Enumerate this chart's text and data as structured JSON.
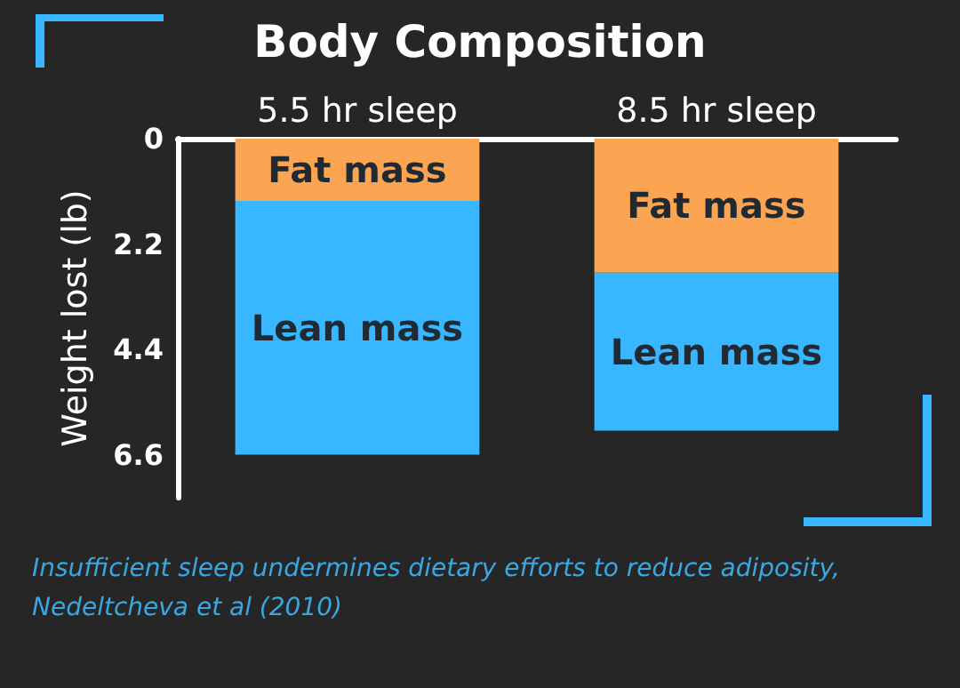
{
  "chart_data": {
    "type": "bar",
    "stacked": true,
    "title": "Body Composition",
    "ylabel": "Weight lost (lb)",
    "categories": [
      "5.5 hr sleep",
      "8.5 hr sleep"
    ],
    "series": [
      {
        "name": "Fat mass",
        "color": "#fba553",
        "values": [
          1.3,
          2.8
        ]
      },
      {
        "name": "Lean mass",
        "color": "#38b6ff",
        "values": [
          5.3,
          3.3
        ]
      }
    ],
    "ylim": [
      7.5,
      0
    ],
    "yticks": [
      0,
      2.2,
      4.4,
      6.6
    ],
    "grid": false,
    "legend": false,
    "annotations": [
      "Insufficient sleep undermines dietary efforts to reduce adiposity,",
      "Nedeltcheva et al (2010)"
    ]
  }
}
